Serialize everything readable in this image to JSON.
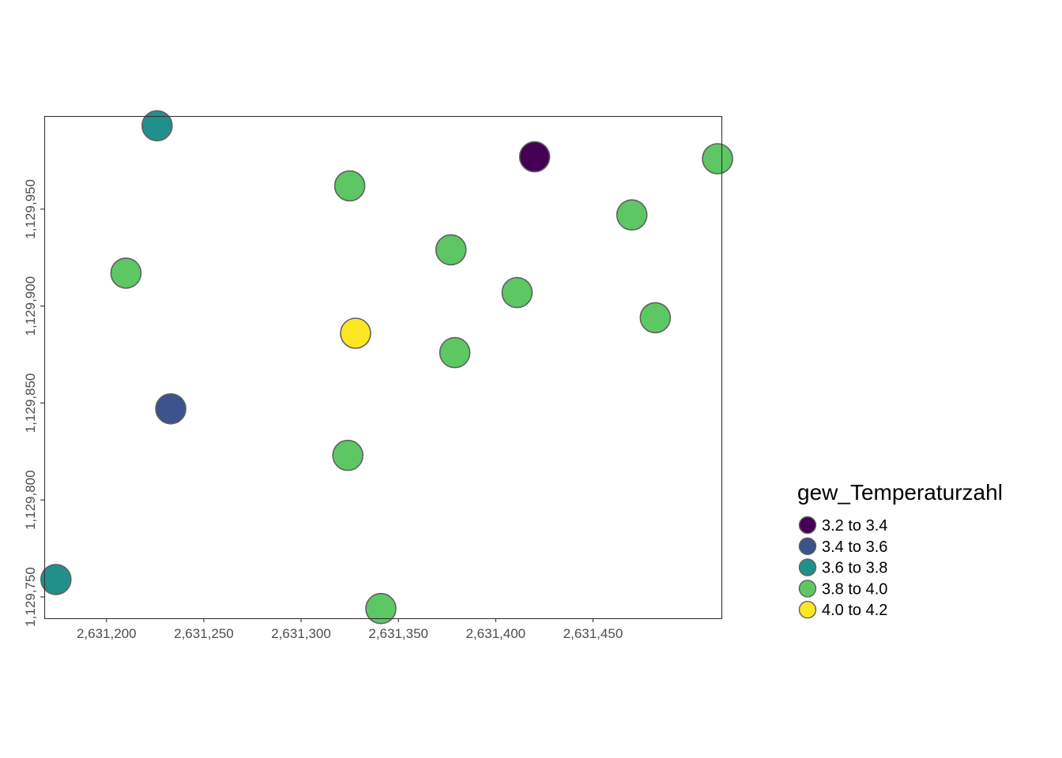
{
  "chart_data": {
    "type": "scatter",
    "xlabel": "",
    "ylabel": "",
    "xlim": [
      2631168,
      2631516
    ],
    "ylim": [
      1129739,
      1129998
    ],
    "x_ticks": [
      2631200,
      2631250,
      2631300,
      2631350,
      2631400,
      2631450
    ],
    "x_tick_labels": [
      "2,631,200",
      "2,631,250",
      "2,631,300",
      "2,631,350",
      "2,631,400",
      "2,631,450"
    ],
    "y_ticks": [
      1129750,
      1129800,
      1129850,
      1129900,
      1129950
    ],
    "y_tick_labels": [
      "1,129,750",
      "1,129,800",
      "1,129,850",
      "1,129,900",
      "1,129,950"
    ],
    "grid": false,
    "legend": {
      "title": "gew_Temperaturzahl",
      "placement": "right",
      "classes": [
        {
          "label": "3.2 to 3.4",
          "color": "#440154"
        },
        {
          "label": "3.4 to 3.6",
          "color": "#3b528b"
        },
        {
          "label": "3.6 to 3.8",
          "color": "#21908c"
        },
        {
          "label": "3.8 to 4.0",
          "color": "#5dc863"
        },
        {
          "label": "4.0 to 4.2",
          "color": "#fde725"
        }
      ]
    },
    "points": [
      {
        "x": 2631226,
        "y": 1129993,
        "class": 2
      },
      {
        "x": 2631420,
        "y": 1129977,
        "class": 0
      },
      {
        "x": 2631514,
        "y": 1129976,
        "class": 3
      },
      {
        "x": 2631325,
        "y": 1129962,
        "class": 3
      },
      {
        "x": 2631470,
        "y": 1129947,
        "class": 3
      },
      {
        "x": 2631377,
        "y": 1129929,
        "class": 3
      },
      {
        "x": 2631210,
        "y": 1129917,
        "class": 3
      },
      {
        "x": 2631411,
        "y": 1129907,
        "class": 3
      },
      {
        "x": 2631482,
        "y": 1129894,
        "class": 3
      },
      {
        "x": 2631328,
        "y": 1129886,
        "class": 4
      },
      {
        "x": 2631379,
        "y": 1129876,
        "class": 3
      },
      {
        "x": 2631233,
        "y": 1129847,
        "class": 1
      },
      {
        "x": 2631324,
        "y": 1129823,
        "class": 3
      },
      {
        "x": 2631174,
        "y": 1129759,
        "class": 2
      },
      {
        "x": 2631341,
        "y": 1129744,
        "class": 3
      }
    ]
  }
}
